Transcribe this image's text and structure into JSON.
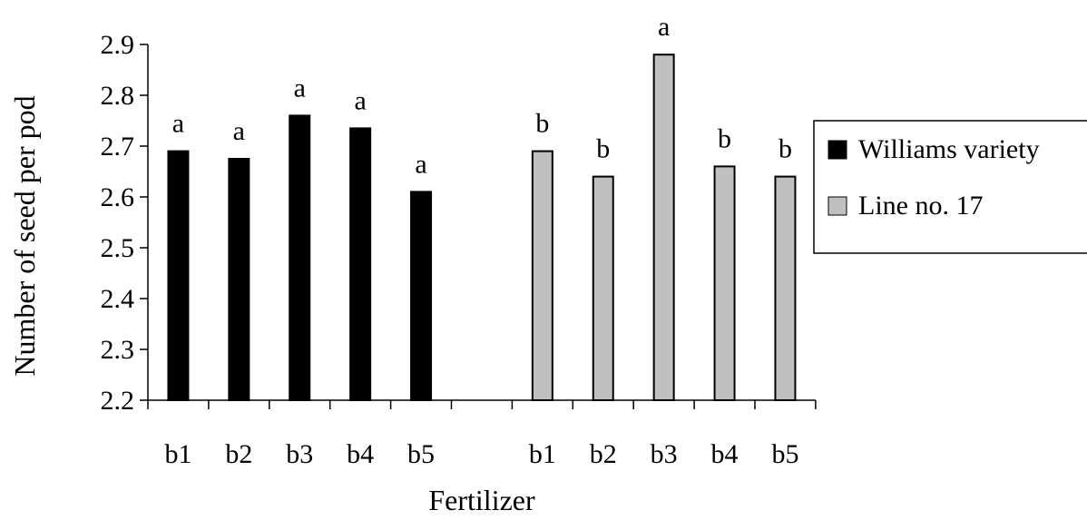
{
  "chart_data": {
    "type": "bar",
    "title": "",
    "xlabel": "Fertilizer",
    "ylabel": "Number of seed per pod",
    "ylim": [
      2.2,
      2.9
    ],
    "yticks": [
      "2.2",
      "2.3",
      "2.4",
      "2.5",
      "2.6",
      "2.7",
      "2.8",
      "2.9"
    ],
    "grid": false,
    "legend_position": "right",
    "series": [
      {
        "name": "Williams variety",
        "color": "#000000",
        "categories": [
          "b1",
          "b2",
          "b3",
          "b4",
          "b5"
        ],
        "values": [
          2.69,
          2.675,
          2.76,
          2.735,
          2.61
        ],
        "letters": [
          "a",
          "a",
          "a",
          "a",
          "a"
        ]
      },
      {
        "name": "Line no. 17",
        "color": "#c0c0c0",
        "categories": [
          "b1",
          "b2",
          "b3",
          "b4",
          "b5"
        ],
        "values": [
          2.69,
          2.64,
          2.88,
          2.66,
          2.64
        ],
        "letters": [
          "b",
          "b",
          "a",
          "b",
          "b"
        ]
      }
    ]
  }
}
